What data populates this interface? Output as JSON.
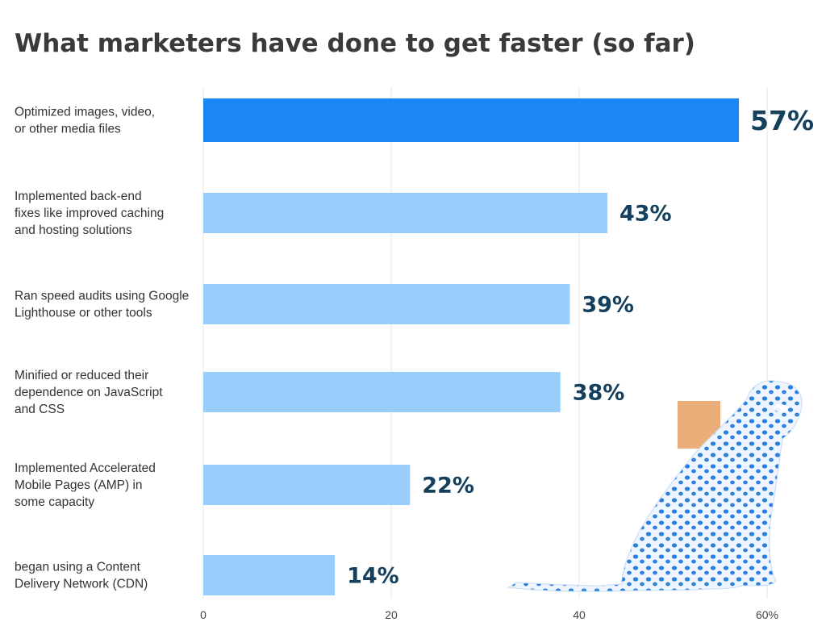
{
  "chart_data": {
    "type": "bar",
    "orientation": "horizontal",
    "title": "What marketers have done to get faster (so far)",
    "categories": [
      "Optimized images, video,\nor other media files",
      "Implemented back-end\nfixes like improved caching\nand hosting solutions",
      "Ran speed audits using Google\nLighthouse or other tools",
      "Minified or reduced their\ndependence on JavaScript\nand CSS",
      "Implemented Accelerated\nMobile Pages (AMP) in\nsome capacity",
      "began using a Content\nDelivery Network (CDN)"
    ],
    "values": [
      57,
      43,
      39,
      38,
      22,
      14
    ],
    "value_labels": [
      "57%",
      "43%",
      "39%",
      "38%",
      "22%",
      "14%"
    ],
    "xlim": [
      0,
      60
    ],
    "x_ticks": [
      0,
      20,
      40,
      60
    ],
    "x_tick_labels": [
      "0",
      "20",
      "40",
      "60%"
    ],
    "grid": true,
    "colors": {
      "highlight_bar": "#1a87f5",
      "bar": "#99cdfb",
      "value_text": "#14405e",
      "title": "#3a3a3a",
      "cheetah": "#2a7fe0",
      "accent": "#e8a060"
    },
    "decoration": "cheetah-illustration"
  }
}
